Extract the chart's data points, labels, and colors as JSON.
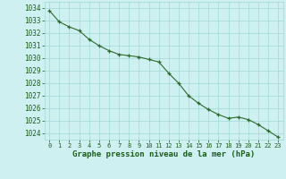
{
  "x": [
    0,
    1,
    2,
    3,
    4,
    5,
    6,
    7,
    8,
    9,
    10,
    11,
    12,
    13,
    14,
    15,
    16,
    17,
    18,
    19,
    20,
    21,
    22,
    23
  ],
  "y": [
    1033.8,
    1032.9,
    1032.5,
    1032.2,
    1031.5,
    1031.0,
    1030.6,
    1030.3,
    1030.2,
    1030.1,
    1029.9,
    1029.7,
    1028.8,
    1028.0,
    1027.0,
    1026.4,
    1025.9,
    1025.5,
    1025.2,
    1025.3,
    1025.1,
    1024.7,
    1024.2,
    1023.7
  ],
  "line_color": "#2d6a2d",
  "marker": "+",
  "marker_color": "#2d6a2d",
  "bg_color": "#cff0f0",
  "grid_color": "#a0d8d8",
  "axis_color": "#808080",
  "xlabel": "Graphe pression niveau de la mer (hPa)",
  "xlabel_color": "#1a5c1a",
  "tick_color": "#1a5c1a",
  "ylim": [
    1023.5,
    1034.5
  ],
  "yticks": [
    1024,
    1025,
    1026,
    1027,
    1028,
    1029,
    1030,
    1031,
    1032,
    1033,
    1034
  ],
  "xticks": [
    0,
    1,
    2,
    3,
    4,
    5,
    6,
    7,
    8,
    9,
    10,
    11,
    12,
    13,
    14,
    15,
    16,
    17,
    18,
    19,
    20,
    21,
    22,
    23
  ],
  "ytick_fontsize": 5.5,
  "xtick_fontsize": 5.0,
  "xlabel_fontsize": 6.5
}
